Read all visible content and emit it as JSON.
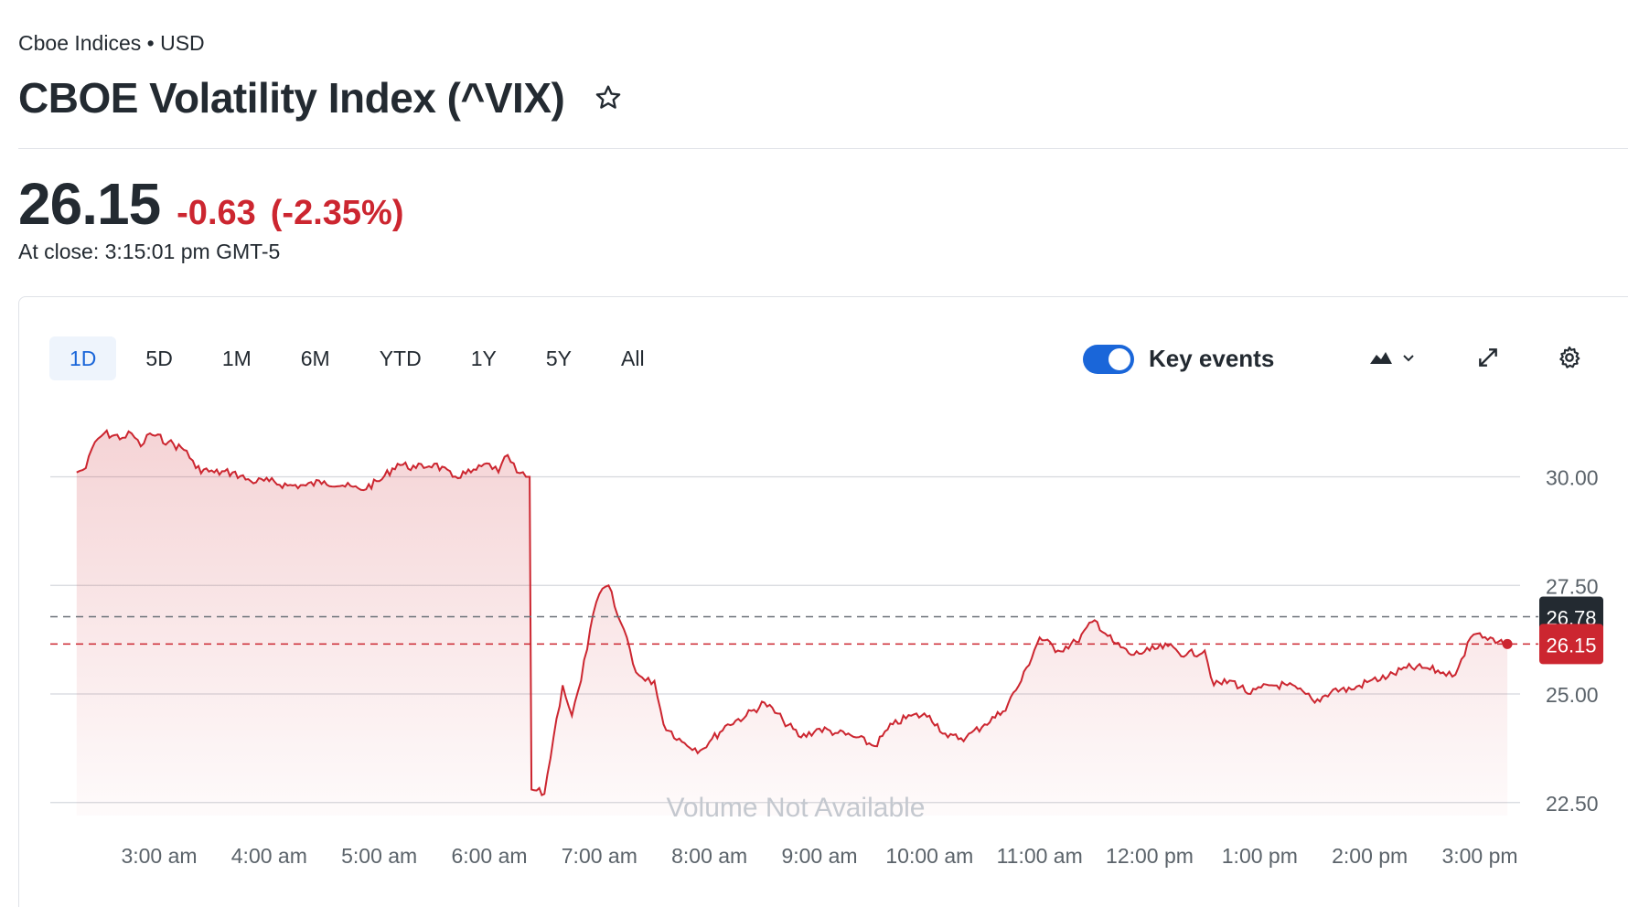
{
  "header": {
    "exchange": "Cboe Indices • USD",
    "title": "CBOE Volatility Index (^VIX)"
  },
  "quote": {
    "price": "26.15",
    "change": "-0.63",
    "change_pct": "(-2.35%)",
    "close_time": "At close: 3:15:01 pm GMT-5"
  },
  "ranges": [
    "1D",
    "5D",
    "1M",
    "6M",
    "YTD",
    "1Y",
    "5Y",
    "All"
  ],
  "active_range": "1D",
  "toolbar": {
    "key_events_label": "Key events",
    "key_events_on": true,
    "chart_type_icon": "mountain-chart-icon",
    "expand_icon": "expand-icon",
    "settings_icon": "gear-icon"
  },
  "colors": {
    "line": "#cc2630",
    "fill": "#f2c6c9",
    "accent": "#1a66d9",
    "prev_close_badge": "#232a31",
    "last_price_badge": "#cc2630"
  },
  "chart_data": {
    "type": "area",
    "x_ticks": [
      "3:00 am",
      "4:00 am",
      "5:00 am",
      "6:00 am",
      "7:00 am",
      "8:00 am",
      "9:00 am",
      "10:00 am",
      "11:00 am",
      "12:00 pm",
      "1:00 pm",
      "2:00 pm",
      "3:00 pm"
    ],
    "y_ticks": [
      "30.00",
      "27.50",
      "25.00",
      "22.50"
    ],
    "y_tick_values": [
      30.0,
      27.5,
      25.0,
      22.5
    ],
    "ylim": [
      22.2,
      31.4
    ],
    "previous_close": 26.78,
    "previous_close_label": "26.78",
    "last_price": 26.15,
    "last_price_label": "26.15",
    "volume_note": "Volume Not Available",
    "grid": true,
    "series": [
      {
        "points": [
          [
            "2:15 am",
            30.1
          ],
          [
            "2:20 am",
            30.2
          ],
          [
            "2:25 am",
            30.8
          ],
          [
            "2:30 am",
            31.0
          ],
          [
            "2:40 am",
            30.9
          ],
          [
            "2:45 am",
            31.0
          ],
          [
            "2:50 am",
            30.7
          ],
          [
            "2:55 am",
            31.0
          ],
          [
            "3:05 am",
            30.8
          ],
          [
            "3:15 am",
            30.6
          ],
          [
            "3:20 am",
            30.2
          ],
          [
            "3:30 am",
            30.1
          ],
          [
            "3:40 am",
            30.1
          ],
          [
            "3:50 am",
            29.9
          ],
          [
            "4:00 am",
            29.9
          ],
          [
            "4:10 am",
            29.8
          ],
          [
            "4:20 am",
            29.8
          ],
          [
            "4:30 am",
            29.9
          ],
          [
            "4:40 am",
            29.8
          ],
          [
            "4:50 am",
            29.7
          ],
          [
            "5:00 am",
            29.9
          ],
          [
            "5:10 am",
            30.3
          ],
          [
            "5:20 am",
            30.2
          ],
          [
            "5:30 am",
            30.3
          ],
          [
            "5:40 am",
            30.0
          ],
          [
            "5:50 am",
            30.1
          ],
          [
            "6:00 am",
            30.3
          ],
          [
            "6:05 am",
            30.1
          ],
          [
            "6:10 am",
            30.5
          ],
          [
            "6:15 am",
            30.1
          ],
          [
            "6:20 am",
            30.0
          ],
          [
            "6:22 am",
            30.0
          ],
          [
            "6:23 am",
            22.8
          ],
          [
            "6:30 am",
            22.7
          ],
          [
            "6:35 am",
            24.0
          ],
          [
            "6:40 am",
            25.2
          ],
          [
            "6:45 am",
            24.5
          ],
          [
            "6:50 am",
            25.3
          ],
          [
            "6:55 am",
            26.5
          ],
          [
            "7:00 am",
            27.3
          ],
          [
            "7:05 am",
            27.5
          ],
          [
            "7:10 am",
            26.8
          ],
          [
            "7:15 am",
            26.3
          ],
          [
            "7:20 am",
            25.5
          ],
          [
            "7:25 am",
            25.3
          ],
          [
            "7:30 am",
            25.3
          ],
          [
            "7:35 am",
            24.3
          ],
          [
            "7:45 am",
            23.9
          ],
          [
            "7:55 am",
            23.7
          ],
          [
            "8:00 am",
            23.9
          ],
          [
            "8:10 am",
            24.3
          ],
          [
            "8:20 am",
            24.5
          ],
          [
            "8:30 am",
            24.8
          ],
          [
            "8:40 am",
            24.4
          ],
          [
            "8:50 am",
            24.0
          ],
          [
            "9:00 am",
            24.2
          ],
          [
            "9:10 am",
            24.1
          ],
          [
            "9:20 am",
            24.0
          ],
          [
            "9:30 am",
            23.8
          ],
          [
            "9:40 am",
            24.3
          ],
          [
            "9:50 am",
            24.5
          ],
          [
            "10:00 am",
            24.5
          ],
          [
            "10:10 am",
            24.0
          ],
          [
            "10:20 am",
            24.0
          ],
          [
            "10:30 am",
            24.3
          ],
          [
            "10:40 am",
            24.6
          ],
          [
            "10:50 am",
            25.3
          ],
          [
            "11:00 am",
            26.3
          ],
          [
            "11:10 am",
            26.0
          ],
          [
            "11:20 am",
            26.2
          ],
          [
            "11:30 am",
            26.7
          ],
          [
            "11:40 am",
            26.2
          ],
          [
            "11:50 am",
            25.9
          ],
          [
            "12:00 pm",
            26.0
          ],
          [
            "12:10 pm",
            26.1
          ],
          [
            "12:20 pm",
            25.9
          ],
          [
            "12:30 pm",
            26.0
          ],
          [
            "12:35 pm",
            25.2
          ],
          [
            "12:45 pm",
            25.3
          ],
          [
            "12:55 pm",
            25.0
          ],
          [
            "1:05 pm",
            25.2
          ],
          [
            "1:15 pm",
            25.2
          ],
          [
            "1:25 pm",
            25.0
          ],
          [
            "1:30 pm",
            24.8
          ],
          [
            "1:40 pm",
            25.1
          ],
          [
            "1:50 pm",
            25.1
          ],
          [
            "2:00 pm",
            25.3
          ],
          [
            "2:10 pm",
            25.4
          ],
          [
            "2:20 pm",
            25.6
          ],
          [
            "2:30 pm",
            25.6
          ],
          [
            "2:40 pm",
            25.5
          ],
          [
            "2:45 pm",
            25.4
          ],
          [
            "2:50 pm",
            25.8
          ],
          [
            "2:55 pm",
            26.3
          ],
          [
            "3:00 pm",
            26.4
          ],
          [
            "3:10 pm",
            26.2
          ],
          [
            "3:15 pm",
            26.15
          ]
        ]
      }
    ]
  }
}
